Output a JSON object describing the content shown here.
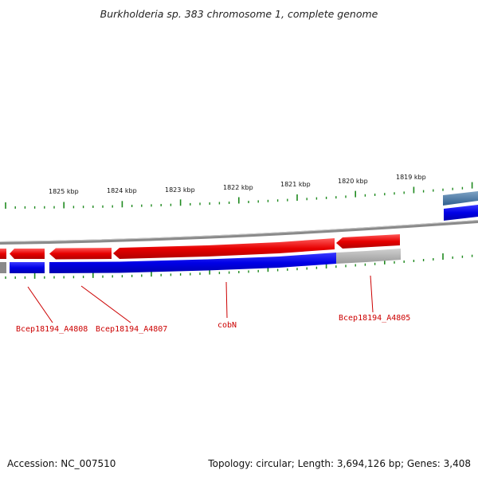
{
  "title": "Burkholderia sp. 383 chromosome 1, complete genome",
  "colors": {
    "forward_gene": "#e60000",
    "reverse_gene": "#0000e6",
    "tick": "#1f8a1f",
    "backbone": "#808080",
    "label": "#cc0000",
    "faded_gene": "#b0b0b0"
  },
  "scale_labels": [
    "1825 kbp",
    "1824 kbp",
    "1823 kbp",
    "1822 kbp",
    "1821 kbp",
    "1820 kbp",
    "1819 kbp"
  ],
  "gene_labels": [
    "Bcep18194_A4808",
    "Bcep18194_A4807",
    "cobN",
    "Bcep18194_A4805"
  ],
  "footer": {
    "accession": "Accession: NC_007510",
    "summary": "Topology: circular; Length: 3,694,126 bp; Genes: 3,408"
  }
}
